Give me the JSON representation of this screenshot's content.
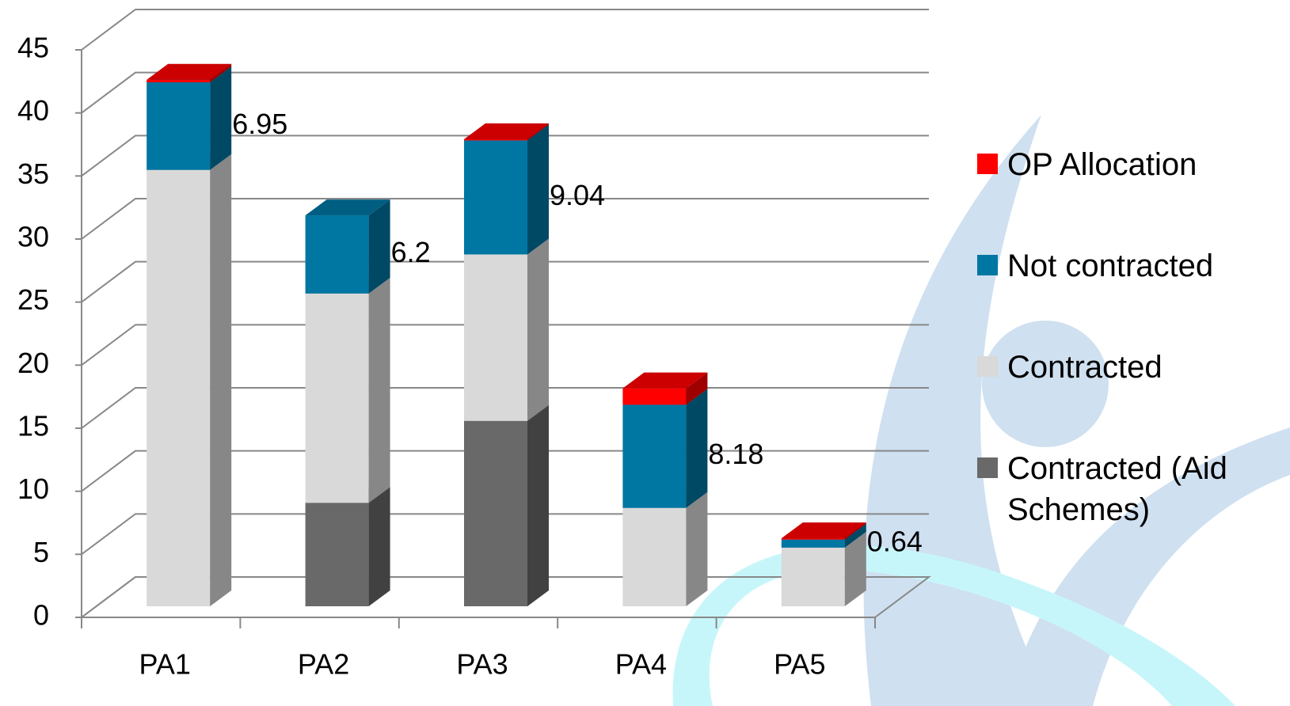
{
  "chart_data": {
    "type": "bar3d_stacked",
    "categories": [
      "PA1",
      "PA2",
      "PA3",
      "PA4",
      "PA5"
    ],
    "series": [
      {
        "name": "Contracted (Aid Schemes)",
        "color": "#696969",
        "values": [
          0,
          8.2,
          14.7,
          0,
          0
        ]
      },
      {
        "name": "Contracted",
        "color": "#d9d9d9",
        "values": [
          34.6,
          16.6,
          13.2,
          7.8,
          4.65
        ]
      },
      {
        "name": "Not contracted",
        "color": "#0076a3",
        "values": [
          6.95,
          6.2,
          9.04,
          8.18,
          0.64
        ]
      },
      {
        "name": "OP Allocation",
        "color": "#ff0000",
        "values": [
          0.2,
          0,
          0.1,
          1.3,
          0.1
        ]
      }
    ],
    "labeled_series": "Not contracted",
    "ylim": [
      0,
      45
    ],
    "yticks": [
      0,
      5,
      10,
      15,
      20,
      25,
      30,
      35,
      40,
      45
    ],
    "grid": true
  }
}
